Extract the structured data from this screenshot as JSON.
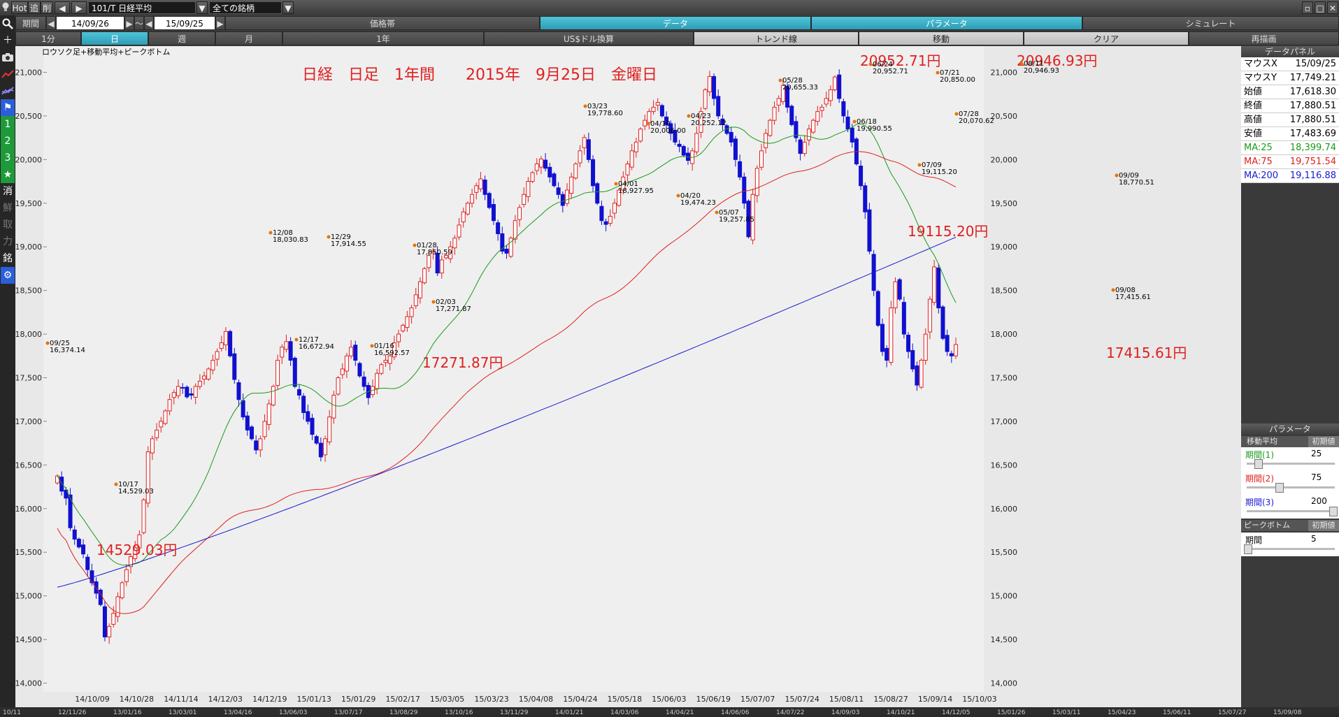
{
  "toolbar": {
    "hot_label": "Hot",
    "add_label": "追",
    "del_label": "削",
    "back_icon": "triangle-left-icon",
    "fwd_icon": "triangle-right-icon",
    "symbol": "101/T 日経平均",
    "universe": "全ての銘柄"
  },
  "period_row": {
    "label": "期間",
    "from": "14/09/26",
    "tilde": "～",
    "to": "15/09/25",
    "price_band": "価格帯",
    "data": "データ",
    "parameter": "パラメータ",
    "simulate": "シミュレート"
  },
  "range_row": {
    "items": [
      "1分",
      "日",
      "週",
      "月",
      "1年",
      "US$ドル換算",
      "トレンド線",
      "移動",
      "クリア",
      "再描画"
    ],
    "active": "日"
  },
  "left_tools": [
    "search-icon",
    "plus-icon",
    "camera-icon",
    "chart-line-icon",
    "chart-multi-icon",
    "flag-icon",
    "1",
    "2",
    "3",
    "★",
    "消",
    "鮮",
    "取",
    "力",
    "銘",
    "gear-icon"
  ],
  "chart": {
    "subtitle": "ロウソク足+移動平均+ピークボトム",
    "title": "日経　日足　1年間　　2015年　9月25日　金曜日",
    "annotations": [
      {
        "text": "20952.71円"
      },
      {
        "text": "20946.93円"
      },
      {
        "text": "19115.20円"
      },
      {
        "text": "17271.87円"
      },
      {
        "text": "17415.61円"
      },
      {
        "text": "14529.03円"
      }
    ],
    "peaks": [
      {
        "date": "09/25",
        "value": "16,374.14"
      },
      {
        "date": "10/17",
        "value": "14,529.03"
      },
      {
        "date": "12/08",
        "value": "18,030.83"
      },
      {
        "date": "12/17",
        "value": "16,672.94"
      },
      {
        "date": "12/29",
        "value": "17,914.55"
      },
      {
        "date": "01/16",
        "value": "16,592.57"
      },
      {
        "date": "01/28",
        "value": "17,850.59"
      },
      {
        "date": "02/03",
        "value": "17,271.87"
      },
      {
        "date": "03/23",
        "value": "19,778.60"
      },
      {
        "date": "04/01",
        "value": "18,927.95"
      },
      {
        "date": "04/10",
        "value": "20,006.00"
      },
      {
        "date": "04/20",
        "value": "19,474.23"
      },
      {
        "date": "04/23",
        "value": "20,252.12"
      },
      {
        "date": "05/07",
        "value": "19,257.85"
      },
      {
        "date": "05/28",
        "value": "20,655.33"
      },
      {
        "date": "06/18",
        "value": "19,990.55"
      },
      {
        "date": "06/24",
        "value": "20,952.71"
      },
      {
        "date": "07/09",
        "value": "19,115.20"
      },
      {
        "date": "07/21",
        "value": "20,850.00"
      },
      {
        "date": "07/28",
        "value": "20,070.62"
      },
      {
        "date": "08/11",
        "value": "20,946.93"
      },
      {
        "date": "09/08",
        "value": "17,415.61"
      },
      {
        "date": "09/09",
        "value": "18,770.51"
      }
    ],
    "y_ticks": [
      "14,000",
      "14,500",
      "15,000",
      "15,500",
      "16,000",
      "16,500",
      "17,000",
      "17,500",
      "18,000",
      "18,500",
      "19,000",
      "19,500",
      "20,000",
      "20,500",
      "21,000"
    ],
    "x_ticks": [
      "14/10/09",
      "14/10/28",
      "14/11/14",
      "14/12/03",
      "14/12/19",
      "15/01/13",
      "15/01/29",
      "15/02/17",
      "15/03/05",
      "15/03/23",
      "15/04/08",
      "15/04/24",
      "15/05/18",
      "15/06/03",
      "15/06/19",
      "15/07/07",
      "15/07/24",
      "15/08/11",
      "15/08/27",
      "15/09/14",
      "15/10/03"
    ],
    "bottom_ticks": [
      "10/11",
      "12/11/26",
      "13/01/16",
      "13/03/01",
      "13/04/16",
      "13/06/03",
      "13/07/17",
      "13/08/29",
      "13/10/16",
      "13/11/29",
      "14/01/21",
      "14/03/06",
      "14/04/21",
      "14/06/06",
      "14/07/22",
      "14/09/03",
      "14/10/21",
      "14/12/05",
      "15/01/26",
      "15/03/11",
      "15/04/23",
      "15/06/11",
      "15/07/27",
      "15/09/08"
    ],
    "colors": {
      "up": "#e02020",
      "down": "#1010d0",
      "ma25": "#1a9a1a",
      "ma75": "#e02020",
      "ma200": "#1a1ad0",
      "annotation": "#e02020"
    }
  },
  "chart_data": {
    "type": "candlestick",
    "title": "日経　日足　1年間　　2015年　9月25日　金曜日",
    "ylim": [
      13900,
      21300
    ],
    "closes": [
      16374,
      16200,
      16120,
      15780,
      15650,
      15560,
      15480,
      15300,
      15150,
      15030,
      14900,
      14529,
      14650,
      14800,
      14990,
      15150,
      15300,
      15450,
      15550,
      15700,
      16100,
      16650,
      16800,
      16900,
      17000,
      17120,
      17250,
      17330,
      17400,
      17380,
      17280,
      17300,
      17400,
      17460,
      17520,
      17600,
      17700,
      17800,
      17900,
      18030,
      17750,
      17480,
      17250,
      17050,
      16900,
      16800,
      16672,
      16800,
      17000,
      17200,
      17400,
      17700,
      17850,
      17914,
      17700,
      17400,
      17300,
      17100,
      17000,
      16850,
      16750,
      16592,
      16800,
      17050,
      17300,
      17500,
      17600,
      17750,
      17850,
      17700,
      17520,
      17400,
      17271,
      17400,
      17550,
      17650,
      17700,
      17750,
      17900,
      18000,
      18100,
      18200,
      18300,
      18450,
      18600,
      18750,
      18900,
      18950,
      18700,
      18850,
      18900,
      19000,
      19100,
      19250,
      19400,
      19500,
      19600,
      19700,
      19778,
      19600,
      19450,
      19300,
      19150,
      18950,
      18927,
      19100,
      19300,
      19450,
      19600,
      19750,
      19850,
      19950,
      20006,
      19900,
      19800,
      19700,
      19600,
      19474,
      19650,
      19800,
      19950,
      20100,
      20252,
      20000,
      19700,
      19500,
      19300,
      19257,
      19350,
      19500,
      19650,
      19800,
      19950,
      20100,
      20200,
      20350,
      20450,
      20550,
      20600,
      20655,
      20500,
      20400,
      20300,
      20200,
      20150,
      20050,
      19990,
      20100,
      20300,
      20550,
      20800,
      20952,
      20700,
      20500,
      20400,
      20300,
      20200,
      20000,
      19800,
      19500,
      19115,
      19600,
      19900,
      20100,
      20300,
      20450,
      20600,
      20700,
      20850,
      20600,
      20400,
      20250,
      20070,
      20200,
      20350,
      20450,
      20550,
      20600,
      20700,
      20800,
      20946,
      20700,
      20500,
      20350,
      20200,
      19950,
      19700,
      19400,
      18950,
      18500,
      18100,
      17800,
      17700,
      18300,
      18600,
      18400,
      18000,
      17800,
      17600,
      17415,
      17700,
      18000,
      18400,
      18770,
      18300,
      17950,
      17800,
      17750,
      17880
    ],
    "ma25_label": "MA:25",
    "ma75_label": "MA:75",
    "ma200_label": "MA:200"
  },
  "data_panel": {
    "title": "データパネル",
    "rows": [
      {
        "k": "マウスX",
        "v": "15/09/25",
        "color": "#000"
      },
      {
        "k": "マウスY",
        "v": "17,749.21",
        "color": "#000"
      },
      {
        "k": "始値",
        "v": "17,618.30",
        "color": "#000"
      },
      {
        "k": "終値",
        "v": "17,880.51",
        "color": "#000"
      },
      {
        "k": "高値",
        "v": "17,880.51",
        "color": "#000"
      },
      {
        "k": "安値",
        "v": "17,483.69",
        "color": "#000"
      },
      {
        "k": "MA:25",
        "v": "18,399.74",
        "color": "#1a9a1a"
      },
      {
        "k": "MA:75",
        "v": "19,751.54",
        "color": "#e02020"
      },
      {
        "k": "MA:200",
        "v": "19,116.88",
        "color": "#1a1ad0"
      }
    ]
  },
  "param_panel": {
    "title": "パラメータ",
    "ma_header": "移動平均",
    "init_label": "初期値",
    "periods": [
      {
        "label": "期間(1)",
        "value": "25",
        "color": "#1a9a1a",
        "level": 0.12
      },
      {
        "label": "期間(2)",
        "value": "75",
        "color": "#e02020",
        "level": 0.37
      },
      {
        "label": "期間(3)",
        "value": "200",
        "color": "#1a1ad0",
        "level": 1.0
      }
    ],
    "pb_header": "ピークボトム",
    "pb_label": "期間",
    "pb_value": "5",
    "pb_level": 0.0
  }
}
